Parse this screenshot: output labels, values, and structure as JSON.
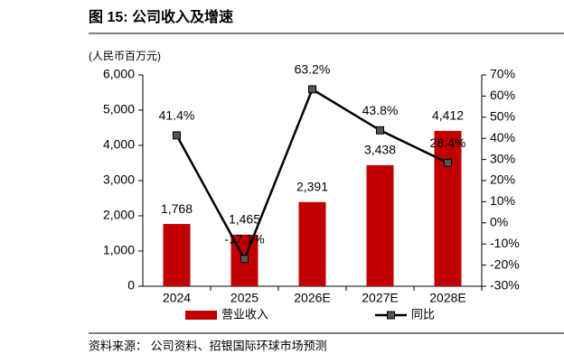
{
  "title": "图 15: 公司收入及增速",
  "source": "资料来源： 公司资料、招银国际环球市场预测",
  "chart_data": {
    "type": "bar",
    "unit_label": "(人民币百万元)",
    "categories": [
      "2024",
      "2025",
      "2026E",
      "2027E",
      "2028E"
    ],
    "series": [
      {
        "name": "营业收入",
        "type": "bar",
        "color": "#c00000",
        "values": [
          1768,
          1465,
          2391,
          3438,
          4412
        ],
        "value_labels": [
          "1,768",
          "1,465",
          "2,391",
          "3,438",
          "4,412"
        ]
      },
      {
        "name": "同比",
        "type": "line",
        "axis": "y2",
        "color": "#000000",
        "values": [
          41.4,
          -17.1,
          63.2,
          43.8,
          28.4
        ],
        "value_labels": [
          "41.4%",
          "-17.1%",
          "63.2%",
          "43.8%",
          "28.4%"
        ]
      }
    ],
    "ylim": [
      0,
      6000
    ],
    "yticks": [
      0,
      {
        "value": 1000,
        "label": "1,000"
      },
      {
        "value": 2000,
        "label": "2,000"
      },
      {
        "value": 3000,
        "label": "3,000"
      },
      {
        "value": 4000,
        "label": "4,000"
      },
      {
        "value": 5000,
        "label": "5,000"
      },
      {
        "value": 6000,
        "label": "6,000"
      }
    ],
    "y2lim": [
      -30,
      70
    ],
    "y2ticks": [
      {
        "value": -30,
        "label": "-30%"
      },
      {
        "value": -20,
        "label": "-20%"
      },
      {
        "value": -10,
        "label": "-10%"
      },
      {
        "value": 0,
        "label": "0%"
      },
      {
        "value": 10,
        "label": "10%"
      },
      {
        "value": 20,
        "label": "20%"
      },
      {
        "value": 30,
        "label": "30%"
      },
      {
        "value": 40,
        "label": "40%"
      },
      {
        "value": 50,
        "label": "50%"
      },
      {
        "value": 60,
        "label": "60%"
      },
      {
        "value": 70,
        "label": "70%"
      }
    ],
    "grid": false
  }
}
